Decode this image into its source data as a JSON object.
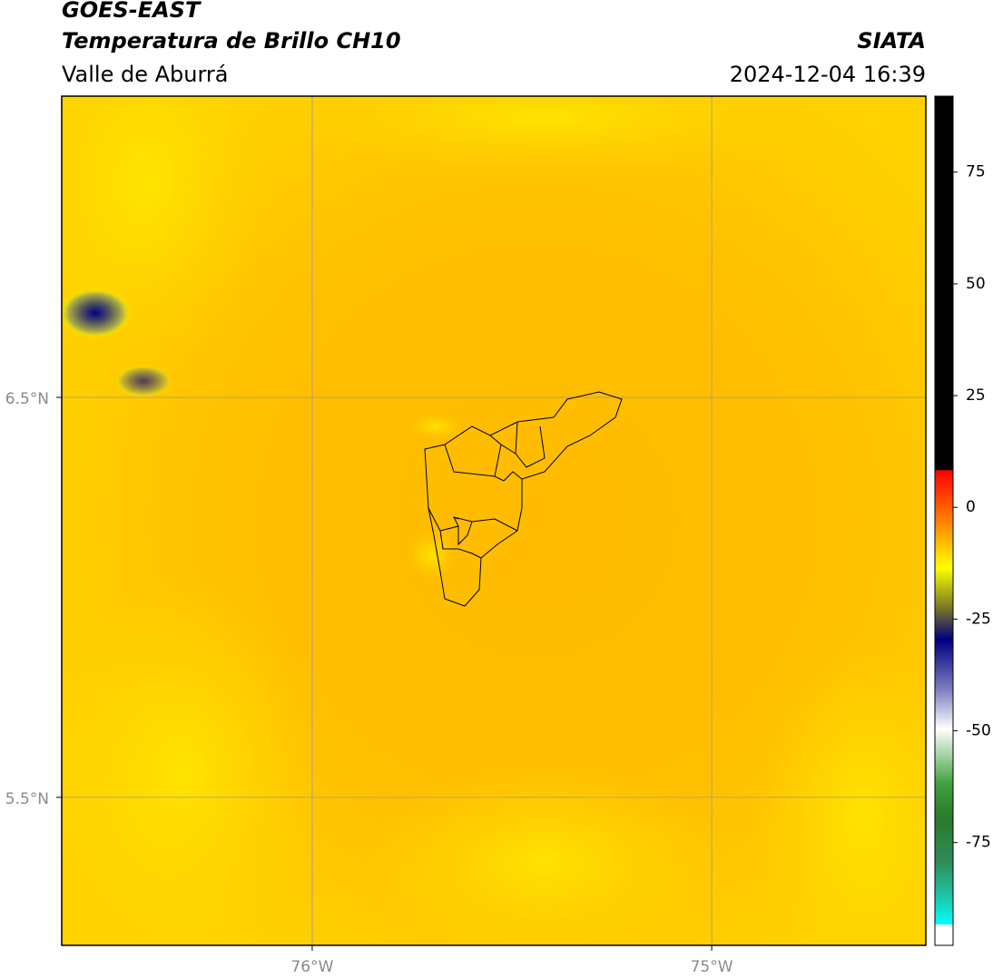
{
  "header": {
    "title": "GOES-EAST",
    "subtitle": "Temperatura de Brillo CH10",
    "region": "Valle de Aburrá",
    "source": "SIATA",
    "timestamp": "2024-12-04 16:39"
  },
  "map": {
    "xlim": [
      -76.627,
      -74.464
    ],
    "ylim": [
      5.13,
      7.253
    ],
    "xticks": [
      {
        "value": -76,
        "label": "76°W"
      },
      {
        "value": -75,
        "label": "75°W"
      }
    ],
    "yticks": [
      {
        "value": 6.5,
        "label": "6.5°N"
      },
      {
        "value": 5.5,
        "label": "5.5°N"
      }
    ],
    "grid": true
  },
  "colorbar": {
    "lim": [
      -98,
      92
    ],
    "ticks": [
      75,
      50,
      25,
      0,
      -25,
      -50,
      -75
    ]
  }
}
